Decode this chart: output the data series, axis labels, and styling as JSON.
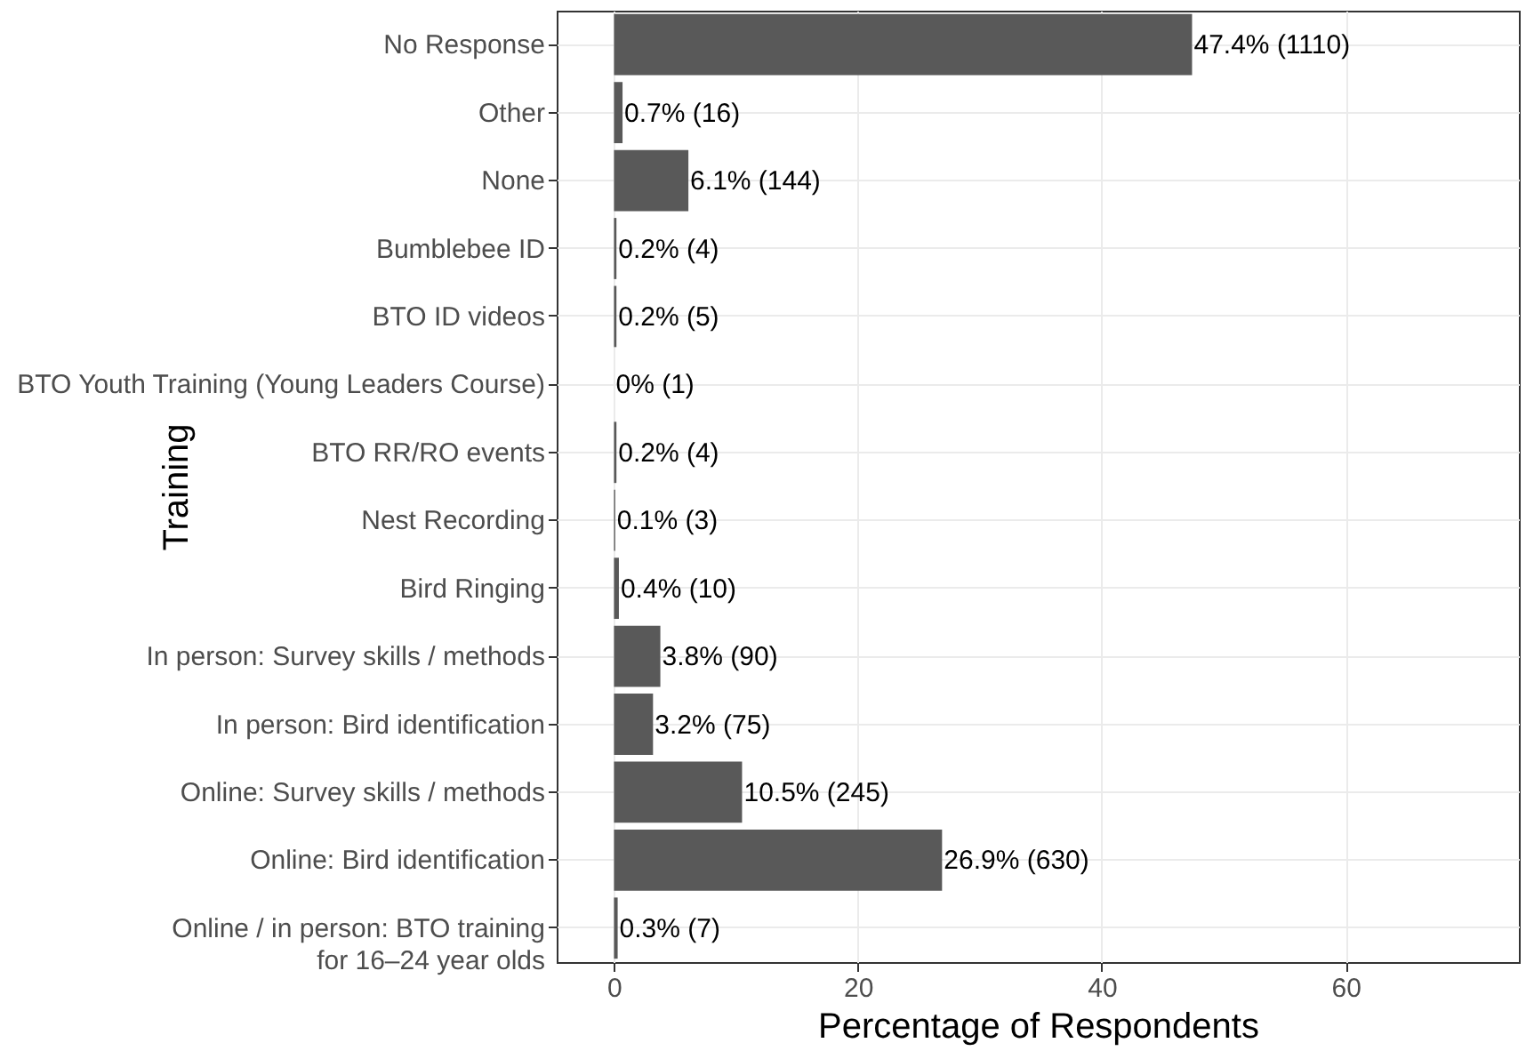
{
  "chart_data": {
    "type": "bar",
    "orientation": "horizontal",
    "xlabel": "Percentage of Respondents",
    "ylabel": "Training",
    "categories": [
      "No Response",
      "Other",
      "None",
      "Bumblebee ID",
      "BTO ID videos",
      "BTO Youth Training (Young Leaders Course)",
      "BTO RR/RO events",
      "Nest Recording",
      "Bird Ringing",
      "In person: Survey skills / methods",
      "In person: Bird identification",
      "Online: Survey skills / methods",
      "Online: Bird identification",
      "Online / in person: BTO training\nfor 16–24 year olds"
    ],
    "values": [
      47.4,
      0.7,
      6.1,
      0.2,
      0.2,
      0,
      0.2,
      0.1,
      0.4,
      3.8,
      3.2,
      10.5,
      26.9,
      0.3
    ],
    "value_labels": [
      "47.4% (1110)",
      "0.7% (16)",
      "6.1% (144)",
      "0.2% (4)",
      "0.2% (5)",
      "0% (1)",
      "0.2% (4)",
      "0.1% (3)",
      "0.4% (10)",
      "3.8% (90)",
      "3.2% (75)",
      "10.5% (245)",
      "26.9% (630)",
      "0.3% (7)"
    ],
    "color": "#595959",
    "xlim": [
      -4.7,
      74.2
    ],
    "xticks": [
      0,
      20,
      40,
      60
    ],
    "grid": true
  }
}
